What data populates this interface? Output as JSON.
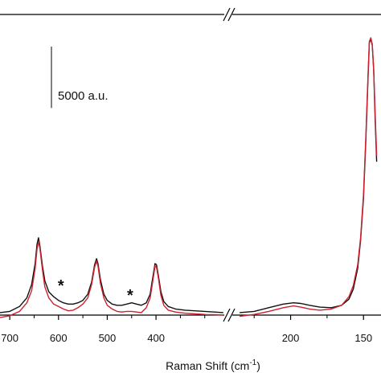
{
  "chart_data": {
    "type": "line",
    "xlabel": "Raman Shift (cm",
    "xlabel_sup": "-1",
    "xlabel_close": ")",
    "x_axis_reversed": true,
    "x_axis_broken": true,
    "segments": [
      {
        "xlim": [
          720,
          260
        ],
        "ticks": [
          700,
          600,
          500,
          400
        ],
        "tick_labels": [
          "700",
          "600",
          "500",
          "400"
        ]
      },
      {
        "xlim": [
          240,
          138
        ],
        "ticks": [
          200,
          150
        ],
        "tick_labels": [
          "200",
          "150"
        ]
      }
    ],
    "ylim": [
      0,
      24500
    ],
    "scale_bar": {
      "label": "5000 a.u.",
      "value": 5000
    },
    "annotations": [
      {
        "label": "*",
        "x": 595
      },
      {
        "label": "*",
        "x": 453
      }
    ],
    "colors": {
      "series_black": "#111111",
      "series_red": "#d0202e",
      "axis": "#000000"
    },
    "series": [
      {
        "color_key": "series_black",
        "points": [
          [
            720,
            200
          ],
          [
            700,
            300
          ],
          [
            680,
            700
          ],
          [
            665,
            1400
          ],
          [
            655,
            2500
          ],
          [
            648,
            4200
          ],
          [
            644,
            5800
          ],
          [
            641,
            6300
          ],
          [
            638,
            5600
          ],
          [
            633,
            4000
          ],
          [
            628,
            2800
          ],
          [
            620,
            1900
          ],
          [
            610,
            1500
          ],
          [
            600,
            1200
          ],
          [
            590,
            1000
          ],
          [
            580,
            900
          ],
          [
            570,
            900
          ],
          [
            560,
            1000
          ],
          [
            550,
            1200
          ],
          [
            540,
            1700
          ],
          [
            532,
            2700
          ],
          [
            526,
            4100
          ],
          [
            522,
            4600
          ],
          [
            519,
            4200
          ],
          [
            514,
            2900
          ],
          [
            507,
            1700
          ],
          [
            500,
            1200
          ],
          [
            490,
            900
          ],
          [
            480,
            800
          ],
          [
            470,
            800
          ],
          [
            460,
            900
          ],
          [
            450,
            1000
          ],
          [
            440,
            900
          ],
          [
            430,
            800
          ],
          [
            420,
            1000
          ],
          [
            412,
            1700
          ],
          [
            406,
            3200
          ],
          [
            402,
            4200
          ],
          [
            399,
            4100
          ],
          [
            395,
            3200
          ],
          [
            390,
            1900
          ],
          [
            384,
            1100
          ],
          [
            375,
            700
          ],
          [
            360,
            500
          ],
          [
            340,
            400
          ],
          [
            320,
            350
          ],
          [
            300,
            300
          ],
          [
            280,
            250
          ],
          [
            262,
            200
          ],
          [
            235,
            200
          ],
          [
            225,
            300
          ],
          [
            215,
            600
          ],
          [
            205,
            900
          ],
          [
            198,
            1000
          ],
          [
            193,
            950
          ],
          [
            187,
            800
          ],
          [
            180,
            650
          ],
          [
            172,
            600
          ],
          [
            165,
            800
          ],
          [
            160,
            1300
          ],
          [
            157,
            2100
          ],
          [
            154,
            3800
          ],
          [
            152,
            6100
          ],
          [
            150,
            9500
          ],
          [
            148.5,
            14000
          ],
          [
            147,
            19000
          ],
          [
            146,
            22200
          ],
          [
            145,
            22500
          ],
          [
            144,
            22000
          ],
          [
            143,
            20000
          ],
          [
            142,
            16000
          ],
          [
            141,
            12500
          ]
        ]
      },
      {
        "color_key": "series_red",
        "points": [
          [
            720,
            -200
          ],
          [
            700,
            -50
          ],
          [
            680,
            300
          ],
          [
            665,
            1000
          ],
          [
            655,
            2000
          ],
          [
            648,
            3800
          ],
          [
            644,
            5400
          ],
          [
            641,
            6000
          ],
          [
            638,
            5400
          ],
          [
            633,
            3700
          ],
          [
            628,
            2300
          ],
          [
            620,
            1400
          ],
          [
            610,
            900
          ],
          [
            600,
            700
          ],
          [
            590,
            500
          ],
          [
            580,
            350
          ],
          [
            570,
            400
          ],
          [
            560,
            600
          ],
          [
            550,
            900
          ],
          [
            540,
            1400
          ],
          [
            532,
            2500
          ],
          [
            526,
            3900
          ],
          [
            522,
            4400
          ],
          [
            519,
            4000
          ],
          [
            514,
            2600
          ],
          [
            507,
            1400
          ],
          [
            500,
            800
          ],
          [
            490,
            500
          ],
          [
            480,
            300
          ],
          [
            470,
            250
          ],
          [
            460,
            300
          ],
          [
            450,
            300
          ],
          [
            440,
            250
          ],
          [
            430,
            200
          ],
          [
            420,
            600
          ],
          [
            412,
            1400
          ],
          [
            406,
            2900
          ],
          [
            402,
            4000
          ],
          [
            399,
            3900
          ],
          [
            395,
            3000
          ],
          [
            390,
            1600
          ],
          [
            384,
            800
          ],
          [
            375,
            400
          ],
          [
            360,
            250
          ],
          [
            340,
            150
          ],
          [
            320,
            100
          ],
          [
            300,
            50
          ],
          [
            280,
            30
          ],
          [
            262,
            0
          ],
          [
            235,
            -100
          ],
          [
            225,
            50
          ],
          [
            215,
            300
          ],
          [
            205,
            600
          ],
          [
            198,
            750
          ],
          [
            193,
            650
          ],
          [
            187,
            500
          ],
          [
            180,
            400
          ],
          [
            172,
            500
          ],
          [
            165,
            800
          ],
          [
            160,
            1500
          ],
          [
            157,
            2400
          ],
          [
            154,
            4100
          ],
          [
            152,
            6300
          ],
          [
            150,
            9800
          ],
          [
            148.5,
            14300
          ],
          [
            147,
            19300
          ],
          [
            146,
            22300
          ],
          [
            145,
            22600
          ],
          [
            144,
            22100
          ],
          [
            143,
            20000
          ],
          [
            142,
            16500
          ],
          [
            141,
            13000
          ]
        ]
      }
    ]
  }
}
